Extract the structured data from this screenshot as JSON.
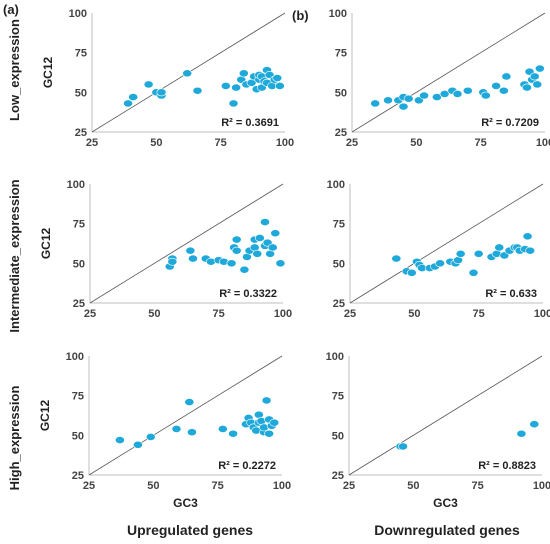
{
  "figure": {
    "panel_labels": [
      "(a)",
      "(b)"
    ],
    "row_labels": [
      "Low_expression",
      "Intermediate_expression",
      "High_expression"
    ],
    "column_labels": [
      "Upregulated genes",
      "Downregulated genes"
    ]
  },
  "chart_data": [
    {
      "type": "scatter",
      "xlabel": "",
      "ylabel": "GC12",
      "xlim": [
        25,
        100
      ],
      "ylim": [
        25,
        100
      ],
      "xticks": [
        "25",
        "50",
        "75",
        "100"
      ],
      "yticks": [
        "25",
        "50",
        "75",
        "100"
      ],
      "r2": "R² = 0.3691",
      "reference_line": "y = x",
      "point_color": "#1fa9da",
      "x": [
        39,
        41,
        47,
        50,
        52,
        52,
        62,
        66,
        77,
        80,
        81,
        83,
        84,
        85,
        87,
        88,
        89,
        90,
        90,
        91,
        91,
        92,
        93,
        93,
        94,
        95,
        96,
        97,
        98
      ],
      "y": [
        43,
        47,
        55,
        50,
        48,
        50,
        62,
        51,
        54,
        43,
        53,
        58,
        62,
        55,
        56,
        60,
        52,
        58,
        61,
        53,
        60,
        57,
        64,
        56,
        61,
        54,
        58,
        59,
        54
      ]
    },
    {
      "type": "scatter",
      "xlabel": "",
      "ylabel": "",
      "xlim": [
        25,
        100
      ],
      "ylim": [
        25,
        100
      ],
      "xticks": [
        "25",
        "50",
        "75",
        "100"
      ],
      "yticks": [
        "25",
        "50",
        "75",
        "100"
      ],
      "r2": "R² = 0.7209",
      "reference_line": "y = x",
      "point_color": "#1fa9da",
      "x": [
        34,
        39,
        43,
        45,
        45,
        47,
        51,
        53,
        58,
        61,
        64,
        66,
        70,
        76,
        77,
        81,
        84,
        85,
        92,
        93,
        94,
        95,
        96,
        97,
        98
      ],
      "y": [
        43,
        45,
        45,
        47,
        41,
        46,
        45,
        48,
        47,
        49,
        51,
        49,
        51,
        50,
        48,
        54,
        51,
        60,
        55,
        53,
        63,
        58,
        60,
        55,
        65
      ]
    },
    {
      "type": "scatter",
      "xlabel": "",
      "ylabel": "GC12",
      "xlim": [
        25,
        100
      ],
      "ylim": [
        25,
        100
      ],
      "xticks": [
        "25",
        "50",
        "75",
        "100"
      ],
      "yticks": [
        "25",
        "50",
        "75",
        "100"
      ],
      "r2": "R² = 0.3322",
      "reference_line": "y = x",
      "point_color": "#1fa9da",
      "x": [
        56,
        57,
        57,
        64,
        65,
        70,
        72,
        75,
        77,
        80,
        81,
        82,
        82,
        85,
        86,
        87,
        89,
        89,
        90,
        91,
        93,
        93,
        94,
        95,
        96,
        97,
        99
      ],
      "y": [
        48,
        53,
        51,
        58,
        53,
        53,
        51,
        52,
        51,
        50,
        60,
        58,
        65,
        46,
        54,
        58,
        60,
        65,
        56,
        66,
        76,
        61,
        63,
        56,
        60,
        69,
        50
      ]
    },
    {
      "type": "scatter",
      "xlabel": "",
      "ylabel": "",
      "xlim": [
        25,
        100
      ],
      "ylim": [
        25,
        100
      ],
      "xticks": [
        "25",
        "50",
        "75",
        "100"
      ],
      "yticks": [
        "25",
        "50",
        "75",
        "100"
      ],
      "r2": "R² = 0.633",
      "reference_line": "y = x",
      "point_color": "#1fa9da",
      "x": [
        43,
        47,
        49,
        51,
        52,
        53,
        56,
        58,
        60,
        64,
        66,
        67,
        68,
        73,
        75,
        80,
        82,
        83,
        85,
        87,
        89,
        90,
        91,
        93,
        94,
        95
      ],
      "y": [
        53,
        45,
        44,
        51,
        49,
        47,
        47,
        48,
        50,
        51,
        50,
        52,
        56,
        44,
        56,
        54,
        56,
        60,
        55,
        58,
        60,
        60,
        58,
        59,
        67,
        58
      ]
    },
    {
      "type": "scatter",
      "xlabel": "GC3",
      "ylabel": "GC12",
      "xlim": [
        25,
        100
      ],
      "ylim": [
        25,
        100
      ],
      "xticks": [
        "25",
        "50",
        "75",
        "100"
      ],
      "yticks": [
        "25",
        "50",
        "75",
        "100"
      ],
      "r2": "R² = 0.2272",
      "reference_line": "y = x",
      "point_color": "#1fa9da",
      "x": [
        37,
        44,
        49,
        59,
        64,
        65,
        77,
        81,
        86,
        87,
        88,
        89,
        90,
        91,
        91,
        92,
        93,
        93,
        94,
        95,
        95,
        96,
        97
      ],
      "y": [
        47,
        44,
        49,
        54,
        71,
        52,
        54,
        51,
        57,
        61,
        58,
        55,
        53,
        63,
        58,
        59,
        52,
        55,
        72,
        51,
        60,
        56,
        58
      ]
    },
    {
      "type": "scatter",
      "xlabel": "GC3",
      "ylabel": "",
      "xlim": [
        25,
        100
      ],
      "ylim": [
        25,
        100
      ],
      "xticks": [
        "25",
        "50",
        "75",
        "100"
      ],
      "yticks": [
        "25",
        "50",
        "75",
        "100"
      ],
      "r2": "R² = 0.8823",
      "reference_line": "y = x",
      "point_color": "#1fa9da",
      "x": [
        45,
        46,
        92,
        97
      ],
      "y": [
        43,
        43,
        51,
        57
      ]
    }
  ]
}
